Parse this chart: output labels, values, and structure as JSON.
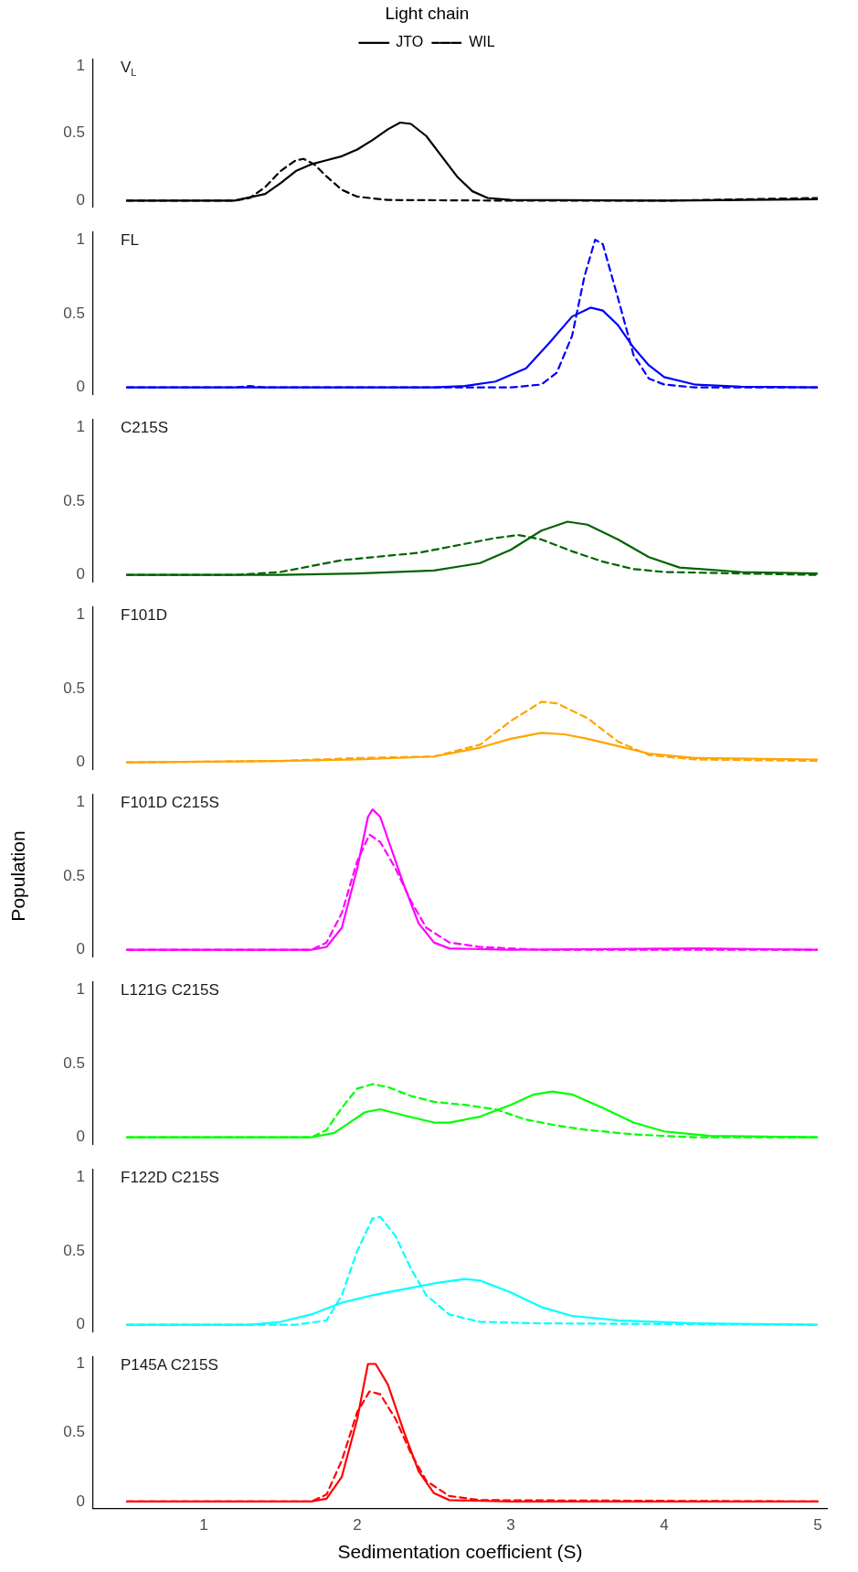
{
  "chart_data": [
    {
      "type": "line",
      "title": "V$_{L}$",
      "legend": "top",
      "legend_title": "Light chain",
      "xlim": [
        0.28,
        5
      ],
      "xticks": [
        1,
        2,
        3,
        4,
        5
      ],
      "ylim": [
        -0.05,
        1.05
      ],
      "yticks": [
        0,
        0.5,
        1
      ],
      "tick_labels": "y",
      "grid": false,
      "marker": "none",
      "series": [
        {
          "name": "JTO",
          "color": "#000000",
          "line_style": "solid",
          "x": [
            0.5,
            1.0,
            1.2,
            1.4,
            1.5,
            1.6,
            1.7,
            1.8,
            1.9,
            2.0,
            2.1,
            2.2,
            2.28,
            2.35,
            2.45,
            2.55,
            2.65,
            2.75,
            2.85,
            3.0,
            4.0,
            5.0
          ],
          "values": [
            0,
            0,
            0,
            0.05,
            0.13,
            0.22,
            0.27,
            0.3,
            0.33,
            0.38,
            0.45,
            0.53,
            0.58,
            0.57,
            0.48,
            0.33,
            0.18,
            0.07,
            0.02,
            0.005,
            0,
            0.01
          ]
        },
        {
          "name": "WIL",
          "color": "#000000",
          "line_style": "dashed",
          "x": [
            0.5,
            1.0,
            1.2,
            1.3,
            1.4,
            1.5,
            1.6,
            1.65,
            1.72,
            1.8,
            1.9,
            2.0,
            2.2,
            3.0,
            4.0,
            5.0
          ],
          "values": [
            0,
            0,
            0,
            0.02,
            0.1,
            0.22,
            0.3,
            0.31,
            0.27,
            0.18,
            0.08,
            0.03,
            0.005,
            0,
            0,
            0.02
          ]
        }
      ]
    },
    {
      "type": "line",
      "title": "FL",
      "xlim": [
        0.28,
        5
      ],
      "xticks": [
        1,
        2,
        3,
        4,
        5
      ],
      "ylim": [
        -0.05,
        1.05
      ],
      "yticks": [
        0,
        0.5,
        1
      ],
      "tick_labels": "y",
      "grid": false,
      "marker": "none",
      "series": [
        {
          "color": "#0000ff",
          "line_style": "solid",
          "x": [
            0.5,
            1.5,
            2.5,
            2.7,
            2.9,
            3.1,
            3.25,
            3.4,
            3.52,
            3.6,
            3.7,
            3.8,
            3.9,
            4.0,
            4.2,
            4.5,
            5.0
          ],
          "values": [
            0,
            0,
            0,
            0.01,
            0.04,
            0.13,
            0.3,
            0.48,
            0.54,
            0.52,
            0.42,
            0.27,
            0.15,
            0.07,
            0.02,
            0.005,
            0
          ]
        },
        {
          "color": "#0000ff",
          "line_style": "dashed",
          "x": [
            0.5,
            1.2,
            1.3,
            1.4,
            2.0,
            3.0,
            3.2,
            3.3,
            3.4,
            3.48,
            3.55,
            3.6,
            3.7,
            3.8,
            3.9,
            4.0,
            4.2,
            5.0
          ],
          "values": [
            0,
            0,
            0.01,
            0,
            0,
            0,
            0.02,
            0.1,
            0.35,
            0.75,
            1.0,
            0.97,
            0.6,
            0.22,
            0.06,
            0.02,
            0,
            0
          ]
        }
      ]
    },
    {
      "type": "line",
      "title": "C215S",
      "xlim": [
        0.28,
        5
      ],
      "xticks": [
        1,
        2,
        3,
        4,
        5
      ],
      "ylim": [
        -0.05,
        1.05
      ],
      "yticks": [
        0,
        0.5,
        1
      ],
      "tick_labels": "y",
      "grid": false,
      "marker": "none",
      "series": [
        {
          "color": "#006400",
          "line_style": "solid",
          "x": [
            0.5,
            1.5,
            2.0,
            2.5,
            2.8,
            3.0,
            3.2,
            3.37,
            3.5,
            3.7,
            3.9,
            4.1,
            4.5,
            5.0
          ],
          "values": [
            0,
            0,
            0.01,
            0.03,
            0.08,
            0.17,
            0.3,
            0.36,
            0.34,
            0.24,
            0.12,
            0.05,
            0.02,
            0.01
          ]
        },
        {
          "color": "#006400",
          "line_style": "dashed",
          "x": [
            0.5,
            1.2,
            1.5,
            1.7,
            1.9,
            2.1,
            2.4,
            2.7,
            2.9,
            3.05,
            3.2,
            3.4,
            3.6,
            3.8,
            4.0,
            5.0
          ],
          "values": [
            0,
            0,
            0.02,
            0.06,
            0.1,
            0.12,
            0.15,
            0.21,
            0.25,
            0.27,
            0.24,
            0.16,
            0.09,
            0.04,
            0.02,
            0
          ]
        }
      ]
    },
    {
      "type": "line",
      "title": "F101D",
      "xlim": [
        0.28,
        5
      ],
      "xticks": [
        1,
        2,
        3,
        4,
        5
      ],
      "ylim": [
        -0.05,
        1.05
      ],
      "yticks": [
        0,
        0.5,
        1
      ],
      "tick_labels": "y",
      "grid": false,
      "marker": "none",
      "series": [
        {
          "color": "#ffa500",
          "line_style": "solid",
          "x": [
            0.5,
            1.5,
            2.0,
            2.5,
            2.8,
            3.0,
            3.2,
            3.35,
            3.5,
            3.7,
            3.9,
            4.2,
            5.0
          ],
          "values": [
            0,
            0.01,
            0.02,
            0.04,
            0.1,
            0.16,
            0.2,
            0.19,
            0.16,
            0.11,
            0.06,
            0.03,
            0.02
          ]
        },
        {
          "color": "#ffa500",
          "line_style": "dashed",
          "x": [
            0.5,
            1.5,
            2.0,
            2.5,
            2.8,
            3.0,
            3.2,
            3.3,
            3.5,
            3.7,
            3.9,
            4.2,
            5.0
          ],
          "values": [
            0,
            0.01,
            0.03,
            0.04,
            0.12,
            0.28,
            0.41,
            0.4,
            0.3,
            0.14,
            0.05,
            0.02,
            0.01
          ]
        }
      ]
    },
    {
      "type": "line",
      "title": "F101D C215S",
      "ylabel": "Population",
      "xlim": [
        0.28,
        5
      ],
      "xticks": [
        1,
        2,
        3,
        4,
        5
      ],
      "ylim": [
        -0.05,
        1.05
      ],
      "yticks": [
        0,
        0.5,
        1
      ],
      "tick_labels": "y",
      "grid": false,
      "marker": "none",
      "series": [
        {
          "color": "#ff00ff",
          "line_style": "solid",
          "x": [
            0.5,
            1.7,
            1.8,
            1.9,
            2.0,
            2.07,
            2.1,
            2.15,
            2.2,
            2.3,
            2.4,
            2.5,
            2.6,
            3.0,
            4.2,
            5.0
          ],
          "values": [
            0,
            0,
            0.02,
            0.15,
            0.55,
            0.9,
            0.95,
            0.9,
            0.75,
            0.45,
            0.18,
            0.05,
            0.01,
            0,
            0.01,
            0
          ]
        },
        {
          "color": "#ff00ff",
          "line_style": "dashed",
          "x": [
            0.5,
            1.7,
            1.8,
            1.9,
            2.0,
            2.08,
            2.15,
            2.25,
            2.35,
            2.45,
            2.6,
            2.8,
            3.2,
            5.0
          ],
          "values": [
            0,
            0,
            0.05,
            0.25,
            0.6,
            0.78,
            0.73,
            0.55,
            0.33,
            0.15,
            0.05,
            0.02,
            0,
            0
          ]
        }
      ]
    },
    {
      "type": "line",
      "title": "L121G C215S",
      "xlim": [
        0.28,
        5
      ],
      "xticks": [
        1,
        2,
        3,
        4,
        5
      ],
      "ylim": [
        -0.05,
        1.05
      ],
      "yticks": [
        0,
        0.5,
        1
      ],
      "tick_labels": "y",
      "grid": false,
      "marker": "none",
      "series": [
        {
          "color": "#00ff00",
          "line_style": "solid",
          "x": [
            0.5,
            1.7,
            1.85,
            1.95,
            2.05,
            2.15,
            2.3,
            2.5,
            2.6,
            2.8,
            3.0,
            3.15,
            3.27,
            3.4,
            3.6,
            3.8,
            4.0,
            4.3,
            5.0
          ],
          "values": [
            0,
            0,
            0.03,
            0.1,
            0.17,
            0.19,
            0.15,
            0.1,
            0.1,
            0.14,
            0.22,
            0.29,
            0.31,
            0.29,
            0.2,
            0.1,
            0.04,
            0.01,
            0
          ]
        },
        {
          "color": "#00ff00",
          "line_style": "dashed",
          "x": [
            0.5,
            1.7,
            1.8,
            1.9,
            2.0,
            2.1,
            2.2,
            2.35,
            2.5,
            2.7,
            2.9,
            3.1,
            3.3,
            3.5,
            3.8,
            4.2,
            5.0
          ],
          "values": [
            0,
            0,
            0.05,
            0.2,
            0.33,
            0.36,
            0.34,
            0.28,
            0.24,
            0.22,
            0.19,
            0.12,
            0.08,
            0.05,
            0.02,
            0,
            0
          ]
        }
      ]
    },
    {
      "type": "line",
      "title": "F122D C215S",
      "xlim": [
        0.28,
        5
      ],
      "xticks": [
        1,
        2,
        3,
        4,
        5
      ],
      "ylim": [
        -0.05,
        1.05
      ],
      "yticks": [
        0,
        0.5,
        1
      ],
      "tick_labels": "y",
      "grid": false,
      "marker": "none",
      "series": [
        {
          "color": "#00ffff",
          "line_style": "solid",
          "x": [
            0.5,
            1.3,
            1.5,
            1.7,
            1.9,
            2.1,
            2.3,
            2.5,
            2.7,
            2.8,
            3.0,
            3.2,
            3.4,
            3.7,
            4.2,
            5.0
          ],
          "values": [
            0,
            0,
            0.02,
            0.07,
            0.15,
            0.2,
            0.24,
            0.28,
            0.31,
            0.3,
            0.22,
            0.12,
            0.06,
            0.03,
            0.01,
            0
          ]
        },
        {
          "color": "#00ffff",
          "line_style": "dashed",
          "x": [
            0.5,
            1.6,
            1.8,
            1.9,
            2.0,
            2.1,
            2.15,
            2.25,
            2.35,
            2.45,
            2.6,
            2.8,
            3.2,
            5.0
          ],
          "values": [
            0,
            0,
            0.03,
            0.2,
            0.5,
            0.72,
            0.73,
            0.6,
            0.38,
            0.2,
            0.07,
            0.02,
            0.01,
            0
          ]
        }
      ]
    },
    {
      "type": "line",
      "title": "P145A C215S",
      "xlabel": "Sedimentation coefficient (S)",
      "xlim": [
        0.28,
        5.06
      ],
      "xticks": [
        1,
        2,
        3,
        4,
        5
      ],
      "ylim": [
        -0.05,
        1.05
      ],
      "yticks": [
        0,
        0.5,
        1
      ],
      "grid": false,
      "marker": "none",
      "series": [
        {
          "color": "#ff0000",
          "line_style": "solid",
          "x": [
            0.5,
            1.7,
            1.8,
            1.9,
            2.0,
            2.07,
            2.12,
            2.2,
            2.3,
            2.4,
            2.5,
            2.6,
            3.0,
            5.0
          ],
          "values": [
            0,
            0,
            0.02,
            0.18,
            0.6,
            1.0,
            1.0,
            0.85,
            0.52,
            0.22,
            0.06,
            0.01,
            0,
            0
          ]
        },
        {
          "color": "#ff0000",
          "line_style": "dashed",
          "x": [
            0.5,
            1.7,
            1.8,
            1.9,
            2.0,
            2.08,
            2.15,
            2.25,
            2.35,
            2.45,
            2.6,
            2.8,
            5.0
          ],
          "values": [
            0,
            0,
            0.05,
            0.3,
            0.65,
            0.8,
            0.78,
            0.6,
            0.35,
            0.15,
            0.04,
            0.01,
            0
          ]
        }
      ]
    }
  ]
}
